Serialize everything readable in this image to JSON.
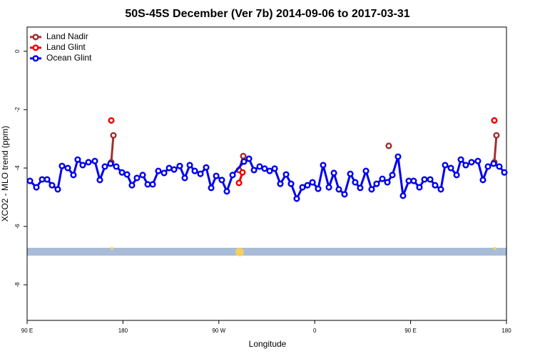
{
  "chart_data": {
    "type": "line",
    "title": "50S-45S December (Ver 7b)   2014-09-06 to 2017-03-31",
    "xlabel": "Longitude",
    "ylabel": "XCO2 - MLO trend (ppm)",
    "xlim": [
      90,
      540
    ],
    "ylim": [
      -9.22,
      0.83
    ],
    "xticks": [
      {
        "value": 90,
        "label": "90 E"
      },
      180,
      {
        "value": 270,
        "label": "90 W"
      },
      {
        "value": 360,
        "label": "0"
      },
      {
        "value": 450,
        "label": "90 E"
      },
      {
        "value": 540,
        "label": "180"
      }
    ],
    "yticks": [
      0,
      -2,
      -4,
      -6,
      -8
    ],
    "legend": "top-left",
    "series": [
      {
        "name": "Land Nadir",
        "color": "#a03030",
        "x": [
          169.0,
          171.0,
          230,
          288.9,
          292.9,
          360,
          429.5,
          480,
          528.6,
          530.6
        ],
        "values": [
          -3.8,
          -2.88,
          null,
          -4.07,
          -3.59,
          null,
          -3.24,
          null,
          -3.8,
          -2.88
        ]
      },
      {
        "name": "Land Glint",
        "color": "#ee0000",
        "x": [
          169.0,
          230,
          288.9,
          292.2,
          400,
          528.6
        ],
        "values": [
          -2.37,
          null,
          -4.51,
          -4.15,
          null,
          -2.37
        ]
      },
      {
        "name": "Ocean Glint",
        "color": "#0000ee",
        "x": [
          92.7,
          98.7,
          104.1,
          108.8,
          113.4,
          118.8,
          122.8,
          128.2,
          133.5,
          137.5,
          142.2,
          147.6,
          153.6,
          158.3,
          163.0,
          168.3,
          173.7,
          179.1,
          183.8,
          188.4,
          193.1,
          198.5,
          203.2,
          207.9,
          213.2,
          218.6,
          223.3,
          228.0,
          233.3,
          238.0,
          242.7,
          247.4,
          252.7,
          258.1,
          262.8,
          267.5,
          272.8,
          277.5,
          282.9,
          293.6,
          298.3,
          303.0,
          308.3,
          313.0,
          317.7,
          322.4,
          327.7,
          333.1,
          337.8,
          343.1,
          348.5,
          353.2,
          357.9,
          363.2,
          367.9,
          373.3,
          378.0,
          382.6,
          388.0,
          393.4,
          398.0,
          402.7,
          408.1,
          413.4,
          418.1,
          423.5,
          428.2,
          432.9,
          438.2,
          442.9,
          448.3,
          452.9,
          458.3,
          463.0,
          468.4,
          473.0,
          478.4,
          482.4,
          487.8,
          493.2,
          497.2,
          501.8,
          507.2,
          513.2,
          517.9,
          522.6,
          528.0,
          533.3,
          538.0
        ],
        "values": [
          -4.44,
          -4.66,
          -4.39,
          -4.39,
          -4.59,
          -4.73,
          -3.93,
          -4.0,
          -4.24,
          -3.71,
          -3.9,
          -3.8,
          -3.76,
          -4.41,
          -3.95,
          -3.85,
          -3.95,
          -4.15,
          -4.22,
          -4.59,
          -4.34,
          -4.24,
          -4.56,
          -4.56,
          -4.1,
          -4.17,
          -4.0,
          -4.05,
          -3.93,
          -4.34,
          -3.9,
          -4.1,
          -4.2,
          -3.98,
          -4.68,
          -4.27,
          -4.41,
          -4.8,
          -4.24,
          -3.78,
          -3.68,
          -4.07,
          -3.95,
          -4.02,
          -4.1,
          -4.02,
          -4.54,
          -4.22,
          -4.54,
          -5.05,
          -4.66,
          -4.59,
          -4.49,
          -4.71,
          -3.9,
          -4.66,
          -4.17,
          -4.73,
          -4.9,
          -4.2,
          -4.49,
          -4.68,
          -4.1,
          -4.73,
          -4.54,
          -4.37,
          -4.49,
          -4.24,
          -3.61,
          -4.95,
          -4.44,
          -4.44,
          -4.66,
          -4.39,
          -4.39,
          -4.59,
          -4.73,
          -3.9,
          -4.0,
          -4.24,
          -3.71,
          -3.9,
          -3.8,
          -3.76,
          -4.41,
          -3.95,
          -3.85,
          -3.95,
          -4.15
        ]
      }
    ]
  }
}
